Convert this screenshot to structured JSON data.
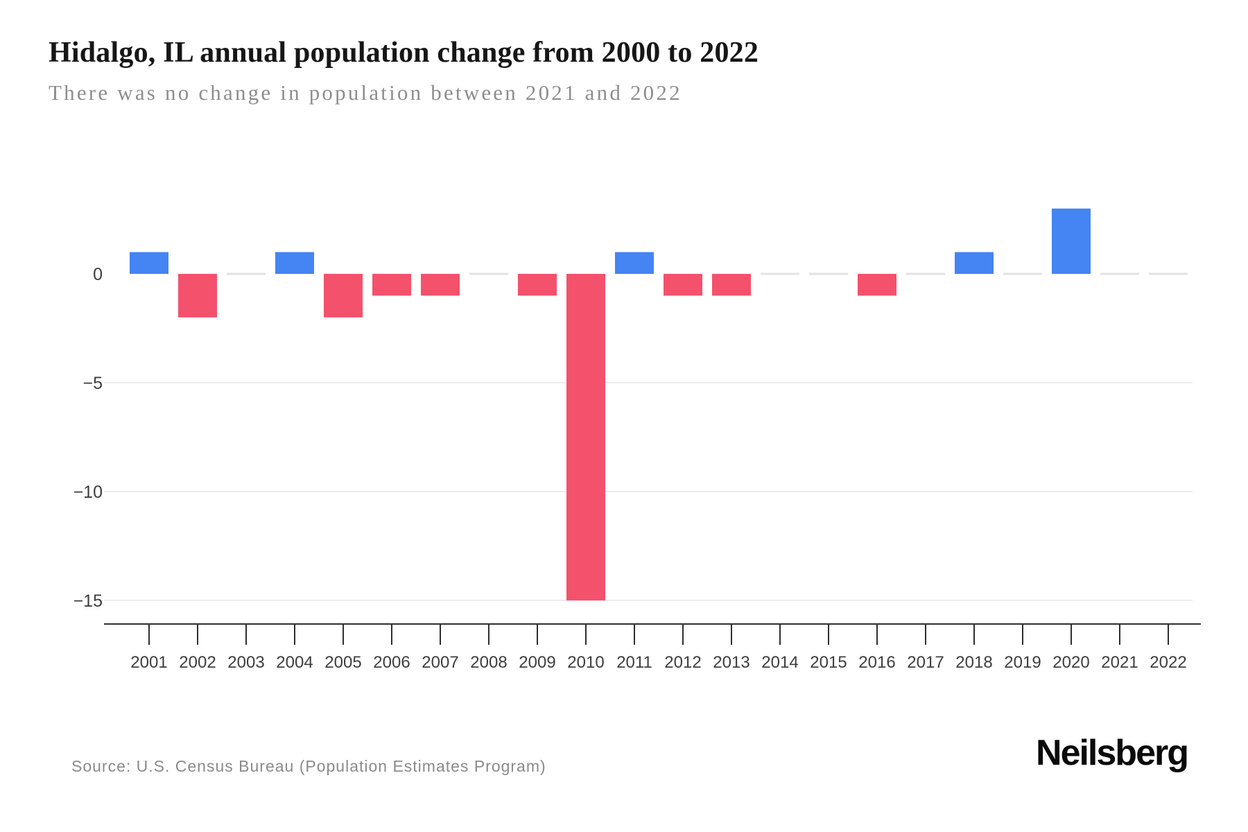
{
  "header": {
    "title": "Hidalgo, IL annual population change from 2000 to 2022",
    "subtitle": "There was no change in population between 2021 and 2022"
  },
  "footer": {
    "source": "Source: U.S. Census Bureau (Population Estimates Program)",
    "brand": "Neilsberg"
  },
  "chart_data": {
    "type": "bar",
    "title": "Hidalgo, IL annual population change from 2000 to 2022",
    "subtitle": "There was no change in population between 2021 and 2022",
    "xlabel": "",
    "ylabel": "",
    "series_name": "Annual population change",
    "categories": [
      "2001",
      "2002",
      "2003",
      "2004",
      "2005",
      "2006",
      "2007",
      "2008",
      "2009",
      "2010",
      "2011",
      "2012",
      "2013",
      "2014",
      "2015",
      "2016",
      "2017",
      "2018",
      "2019",
      "2020",
      "2021",
      "2022"
    ],
    "values": [
      1,
      -2,
      0,
      1,
      -2,
      -1,
      -1,
      0,
      -1,
      -15,
      1,
      -1,
      -1,
      0,
      0,
      -1,
      0,
      1,
      0,
      3,
      0,
      0
    ],
    "ytick_values": [
      0,
      -5,
      -10,
      -15
    ],
    "ytick_labels": [
      "0",
      "−5",
      "−10",
      "−15"
    ],
    "ylim": [
      -16,
      4
    ],
    "grid": "horizontal",
    "legend": "none",
    "zero_value_marker": "short light-gray dash on the zero line",
    "colors": {
      "positive_bar": "#4484F3",
      "negative_bar": "#F4516C",
      "zero_dash": "#E2E2E2",
      "gridline": "#ECECEC",
      "axis": "#2E2E2E",
      "tick_label": "#3E3E3E"
    }
  }
}
